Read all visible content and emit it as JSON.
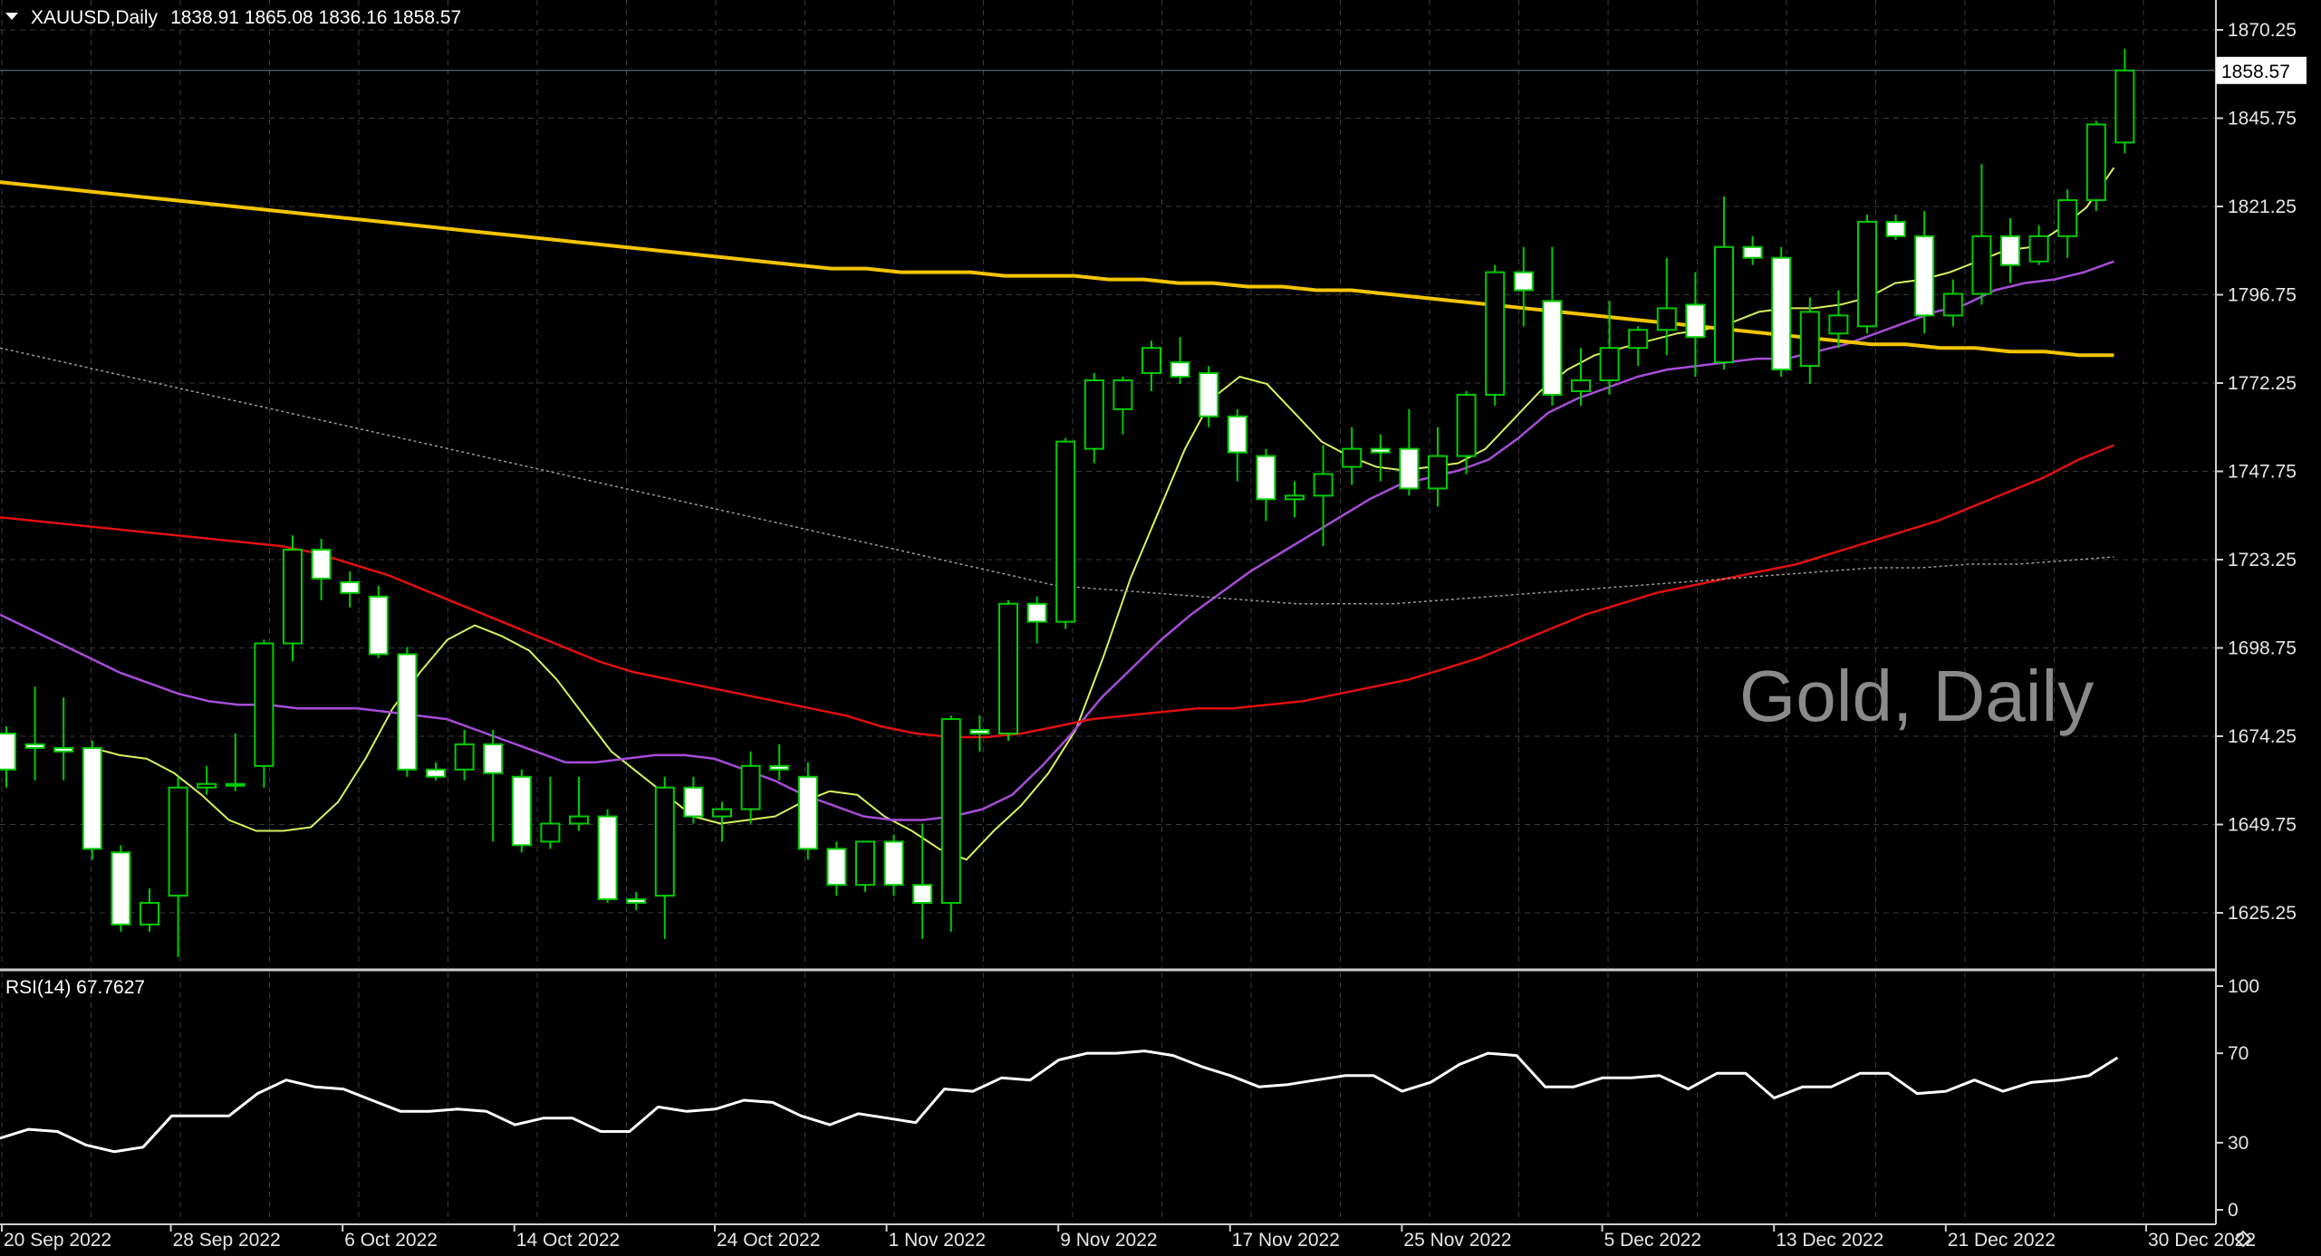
{
  "header": {
    "symbol": "XAUUSD",
    "timeframe": "Daily",
    "ohlc": "1838.91 1865.08 1836.16 1858.57"
  },
  "watermark": "Gold, Daily",
  "current_price_label": "1858.57",
  "rsi_label": "RSI(14) 67.7627",
  "colors": {
    "background": "#000000",
    "grid": "#3a3a3a",
    "bull_candle": "#000000",
    "bear_candle": "#ffffff",
    "wick": "#00cc00",
    "ma_fast": "#d8f060",
    "ma_mid": "#a64dd8",
    "ma_slow": "#e01010",
    "ma_long": "#f3c400",
    "ma_dotted": "#9a9a9a",
    "rsi_line": "#ffffff"
  },
  "chart_data": [
    {
      "type": "candlestick",
      "title": "XAUUSD,Daily",
      "y_ticks": [
        "1870.25",
        "1845.75",
        "1821.25",
        "1796.75",
        "1772.25",
        "1747.75",
        "1723.25",
        "1698.75",
        "1674.25",
        "1649.75",
        "1625.25"
      ],
      "ylim": [
        1612,
        1876
      ],
      "x_ticks": [
        "20 Sep 2022",
        "28 Sep 2022",
        "6 Oct 2022",
        "14 Oct 2022",
        "24 Oct 2022",
        "1 Nov 2022",
        "9 Nov 2022",
        "17 Nov 2022",
        "25 Nov 2022",
        "5 Dec 2022",
        "13 Dec 2022",
        "21 Dec 2022",
        "30 Dec 2022"
      ],
      "x_tick_bar_index": [
        0,
        6,
        12,
        18,
        25,
        31,
        37,
        43,
        49,
        56,
        62,
        68,
        75
      ],
      "candles": [
        {
          "o": 1675,
          "h": 1677,
          "l": 1660,
          "c": 1665
        },
        {
          "o": 1672,
          "h": 1688,
          "l": 1662,
          "c": 1671
        },
        {
          "o": 1671,
          "h": 1685,
          "l": 1662,
          "c": 1670
        },
        {
          "o": 1671,
          "h": 1673,
          "l": 1640,
          "c": 1643
        },
        {
          "o": 1642,
          "h": 1644,
          "l": 1620,
          "c": 1622
        },
        {
          "o": 1622,
          "h": 1632,
          "l": 1620,
          "c": 1628
        },
        {
          "o": 1630,
          "h": 1663,
          "l": 1613,
          "c": 1660
        },
        {
          "o": 1660,
          "h": 1666,
          "l": 1658,
          "c": 1661
        },
        {
          "o": 1661,
          "h": 1675,
          "l": 1659,
          "c": 1661
        },
        {
          "o": 1666,
          "h": 1701,
          "l": 1660,
          "c": 1700
        },
        {
          "o": 1700,
          "h": 1730,
          "l": 1695,
          "c": 1726
        },
        {
          "o": 1726,
          "h": 1729,
          "l": 1712,
          "c": 1718
        },
        {
          "o": 1717,
          "h": 1720,
          "l": 1710,
          "c": 1714
        },
        {
          "o": 1713,
          "h": 1716,
          "l": 1696,
          "c": 1697
        },
        {
          "o": 1697,
          "h": 1699,
          "l": 1663,
          "c": 1665
        },
        {
          "o": 1665,
          "h": 1667,
          "l": 1662,
          "c": 1663
        },
        {
          "o": 1665,
          "h": 1676,
          "l": 1662,
          "c": 1672
        },
        {
          "o": 1672,
          "h": 1676,
          "l": 1645,
          "c": 1664
        },
        {
          "o": 1663,
          "h": 1665,
          "l": 1642,
          "c": 1644
        },
        {
          "o": 1645,
          "h": 1663,
          "l": 1643,
          "c": 1650
        },
        {
          "o": 1650,
          "h": 1663,
          "l": 1648,
          "c": 1652
        },
        {
          "o": 1652,
          "h": 1654,
          "l": 1628,
          "c": 1629
        },
        {
          "o": 1629,
          "h": 1631,
          "l": 1626,
          "c": 1628
        },
        {
          "o": 1630,
          "h": 1663,
          "l": 1618,
          "c": 1660
        },
        {
          "o": 1660,
          "h": 1663,
          "l": 1650,
          "c": 1652
        },
        {
          "o": 1652,
          "h": 1656,
          "l": 1645,
          "c": 1654
        },
        {
          "o": 1654,
          "h": 1670,
          "l": 1650,
          "c": 1666
        },
        {
          "o": 1666,
          "h": 1672,
          "l": 1662,
          "c": 1665
        },
        {
          "o": 1663,
          "h": 1667,
          "l": 1640,
          "c": 1643
        },
        {
          "o": 1643,
          "h": 1645,
          "l": 1630,
          "c": 1633
        },
        {
          "o": 1633,
          "h": 1645,
          "l": 1631,
          "c": 1645
        },
        {
          "o": 1645,
          "h": 1647,
          "l": 1630,
          "c": 1633
        },
        {
          "o": 1633,
          "h": 1650,
          "l": 1618,
          "c": 1628
        },
        {
          "o": 1628,
          "h": 1680,
          "l": 1620,
          "c": 1679
        },
        {
          "o": 1676,
          "h": 1680,
          "l": 1670,
          "c": 1675
        },
        {
          "o": 1675,
          "h": 1712,
          "l": 1673,
          "c": 1711
        },
        {
          "o": 1711,
          "h": 1713,
          "l": 1700,
          "c": 1706
        },
        {
          "o": 1706,
          "h": 1757,
          "l": 1704,
          "c": 1756
        },
        {
          "o": 1754,
          "h": 1775,
          "l": 1750,
          "c": 1773
        },
        {
          "o": 1765,
          "h": 1774,
          "l": 1758,
          "c": 1773
        },
        {
          "o": 1775,
          "h": 1784,
          "l": 1770,
          "c": 1782
        },
        {
          "o": 1778,
          "h": 1785,
          "l": 1772,
          "c": 1774
        },
        {
          "o": 1775,
          "h": 1777,
          "l": 1760,
          "c": 1763
        },
        {
          "o": 1763,
          "h": 1765,
          "l": 1745,
          "c": 1753
        },
        {
          "o": 1752,
          "h": 1754,
          "l": 1734,
          "c": 1740
        },
        {
          "o": 1740,
          "h": 1745,
          "l": 1735,
          "c": 1741
        },
        {
          "o": 1741,
          "h": 1755,
          "l": 1727,
          "c": 1747
        },
        {
          "o": 1749,
          "h": 1760,
          "l": 1744,
          "c": 1754
        },
        {
          "o": 1754,
          "h": 1758,
          "l": 1745,
          "c": 1753
        },
        {
          "o": 1754,
          "h": 1765,
          "l": 1741,
          "c": 1743
        },
        {
          "o": 1743,
          "h": 1760,
          "l": 1738,
          "c": 1752
        },
        {
          "o": 1752,
          "h": 1770,
          "l": 1747,
          "c": 1769
        },
        {
          "o": 1769,
          "h": 1805,
          "l": 1766,
          "c": 1803
        },
        {
          "o": 1803,
          "h": 1810,
          "l": 1788,
          "c": 1798
        },
        {
          "o": 1795,
          "h": 1810,
          "l": 1766,
          "c": 1769
        },
        {
          "o": 1770,
          "h": 1782,
          "l": 1766,
          "c": 1773
        },
        {
          "o": 1773,
          "h": 1795,
          "l": 1769,
          "c": 1782
        },
        {
          "o": 1782,
          "h": 1788,
          "l": 1777,
          "c": 1787
        },
        {
          "o": 1787,
          "h": 1807,
          "l": 1780,
          "c": 1793
        },
        {
          "o": 1794,
          "h": 1803,
          "l": 1774,
          "c": 1785
        },
        {
          "o": 1778,
          "h": 1824,
          "l": 1776,
          "c": 1810
        },
        {
          "o": 1810,
          "h": 1813,
          "l": 1805,
          "c": 1807
        },
        {
          "o": 1807,
          "h": 1810,
          "l": 1774,
          "c": 1776
        },
        {
          "o": 1777,
          "h": 1796,
          "l": 1772,
          "c": 1792
        },
        {
          "o": 1786,
          "h": 1798,
          "l": 1782,
          "c": 1791
        },
        {
          "o": 1788,
          "h": 1819,
          "l": 1786,
          "c": 1817
        },
        {
          "o": 1817,
          "h": 1819,
          "l": 1812,
          "c": 1813
        },
        {
          "o": 1813,
          "h": 1820,
          "l": 1786,
          "c": 1791
        },
        {
          "o": 1791,
          "h": 1801,
          "l": 1788,
          "c": 1797
        },
        {
          "o": 1797,
          "h": 1833,
          "l": 1794,
          "c": 1813
        },
        {
          "o": 1813,
          "h": 1818,
          "l": 1800,
          "c": 1805
        },
        {
          "o": 1806,
          "h": 1816,
          "l": 1805,
          "c": 1813
        },
        {
          "o": 1813,
          "h": 1826,
          "l": 1807,
          "c": 1823
        },
        {
          "o": 1823,
          "h": 1845,
          "l": 1820,
          "c": 1844
        },
        {
          "o": 1839,
          "h": 1865,
          "l": 1836,
          "c": 1859
        }
      ],
      "series": [
        {
          "name": "",
          "style": "fast",
          "values": [
            1671,
            1669,
            1668,
            1664,
            1658,
            1651,
            1648,
            1648,
            1649,
            1656,
            1668,
            1682,
            1692,
            1701,
            1705,
            1702,
            1698,
            1690,
            1680,
            1670,
            1664,
            1658,
            1652,
            1650,
            1651,
            1652,
            1656,
            1659,
            1658,
            1652,
            1648,
            1643,
            1640,
            1648,
            1655,
            1664,
            1676,
            1696,
            1718,
            1736,
            1754,
            1768,
            1774,
            1772,
            1764,
            1756,
            1752,
            1749,
            1748,
            1749,
            1750,
            1754,
            1762,
            1770,
            1776,
            1780,
            1782,
            1784,
            1786,
            1787,
            1789,
            1792,
            1793,
            1793,
            1794,
            1796,
            1800,
            1801,
            1803,
            1806,
            1809,
            1810,
            1815,
            1821,
            1832
          ]
        },
        {
          "name": "",
          "style": "mid",
          "values": [
            1708,
            1704,
            1700,
            1696,
            1692,
            1689,
            1686,
            1684,
            1683,
            1683,
            1682,
            1682,
            1682,
            1681,
            1680,
            1679,
            1676,
            1673,
            1670,
            1667,
            1667,
            1668,
            1669,
            1669,
            1668,
            1665,
            1662,
            1658,
            1655,
            1652,
            1651,
            1651,
            1652,
            1654,
            1658,
            1666,
            1675,
            1685,
            1693,
            1701,
            1708,
            1714,
            1720,
            1725,
            1730,
            1735,
            1740,
            1744,
            1746,
            1748,
            1751,
            1757,
            1764,
            1768,
            1771,
            1774,
            1776,
            1777,
            1778,
            1779,
            1779,
            1781,
            1783,
            1786,
            1789,
            1792,
            1794,
            1798,
            1800,
            1801,
            1803,
            1806
          ]
        },
        {
          "name": "",
          "style": "slow",
          "values": [
            1735,
            1734,
            1733,
            1732,
            1731,
            1730,
            1729,
            1728,
            1727,
            1725,
            1722,
            1719,
            1715,
            1711,
            1707,
            1703,
            1699,
            1695,
            1692,
            1690,
            1688,
            1686,
            1684,
            1682,
            1680,
            1677,
            1675,
            1674,
            1674,
            1675,
            1677,
            1679,
            1680,
            1681,
            1682,
            1682,
            1683,
            1684,
            1686,
            1688,
            1690,
            1693,
            1696,
            1700,
            1704,
            1708,
            1711,
            1714,
            1716,
            1718,
            1720,
            1722,
            1725,
            1728,
            1731,
            1734,
            1738,
            1742,
            1746,
            1751,
            1755
          ]
        },
        {
          "name": "",
          "style": "long",
          "values": [
            1828,
            1827,
            1826,
            1825,
            1824,
            1823,
            1822,
            1821,
            1820,
            1819,
            1818,
            1817,
            1816,
            1815,
            1814,
            1813,
            1812,
            1811,
            1810,
            1809,
            1808,
            1807,
            1806,
            1805,
            1804,
            1804,
            1803,
            1803,
            1803,
            1802,
            1802,
            1802,
            1801,
            1801,
            1800,
            1800,
            1799,
            1799,
            1798,
            1798,
            1797,
            1796,
            1795,
            1794,
            1793,
            1792,
            1791,
            1790,
            1789,
            1788,
            1787,
            1786,
            1785,
            1784,
            1783,
            1783,
            1782,
            1782,
            1781,
            1781,
            1780,
            1780
          ]
        },
        {
          "name": "",
          "style": "dotted",
          "values": [
            1782,
            1779,
            1776,
            1773,
            1770,
            1767,
            1764,
            1761,
            1758,
            1755,
            1752,
            1749,
            1746,
            1743,
            1740,
            1737,
            1734,
            1731,
            1728,
            1725,
            1722,
            1719,
            1716,
            1715,
            1714,
            1713,
            1712,
            1711,
            1711,
            1711,
            1712,
            1713,
            1714,
            1715,
            1716,
            1717,
            1718,
            1719,
            1720,
            1721,
            1721,
            1722,
            1722,
            1723,
            1724
          ]
        }
      ]
    },
    {
      "type": "line",
      "title": "RSI(14) 67.7627",
      "y_ticks": [
        "100",
        "70",
        "30",
        "0"
      ],
      "ylim": [
        0,
        100
      ],
      "series": [
        {
          "name": "RSI(14)",
          "values": [
            32,
            36,
            35,
            29,
            26,
            28,
            42,
            42,
            42,
            52,
            58,
            55,
            54,
            49,
            44,
            44,
            45,
            44,
            38,
            41,
            41,
            35,
            35,
            46,
            44,
            45,
            49,
            48,
            42,
            38,
            43,
            41,
            39,
            54,
            53,
            59,
            58,
            67,
            70,
            70,
            71,
            69,
            64,
            60,
            55,
            56,
            58,
            60,
            60,
            53,
            57,
            65,
            70,
            69,
            55,
            55,
            59,
            59,
            60,
            54,
            61,
            61,
            50,
            55,
            55,
            61,
            61,
            52,
            53,
            58,
            53,
            57,
            58,
            60,
            68
          ]
        }
      ]
    }
  ]
}
